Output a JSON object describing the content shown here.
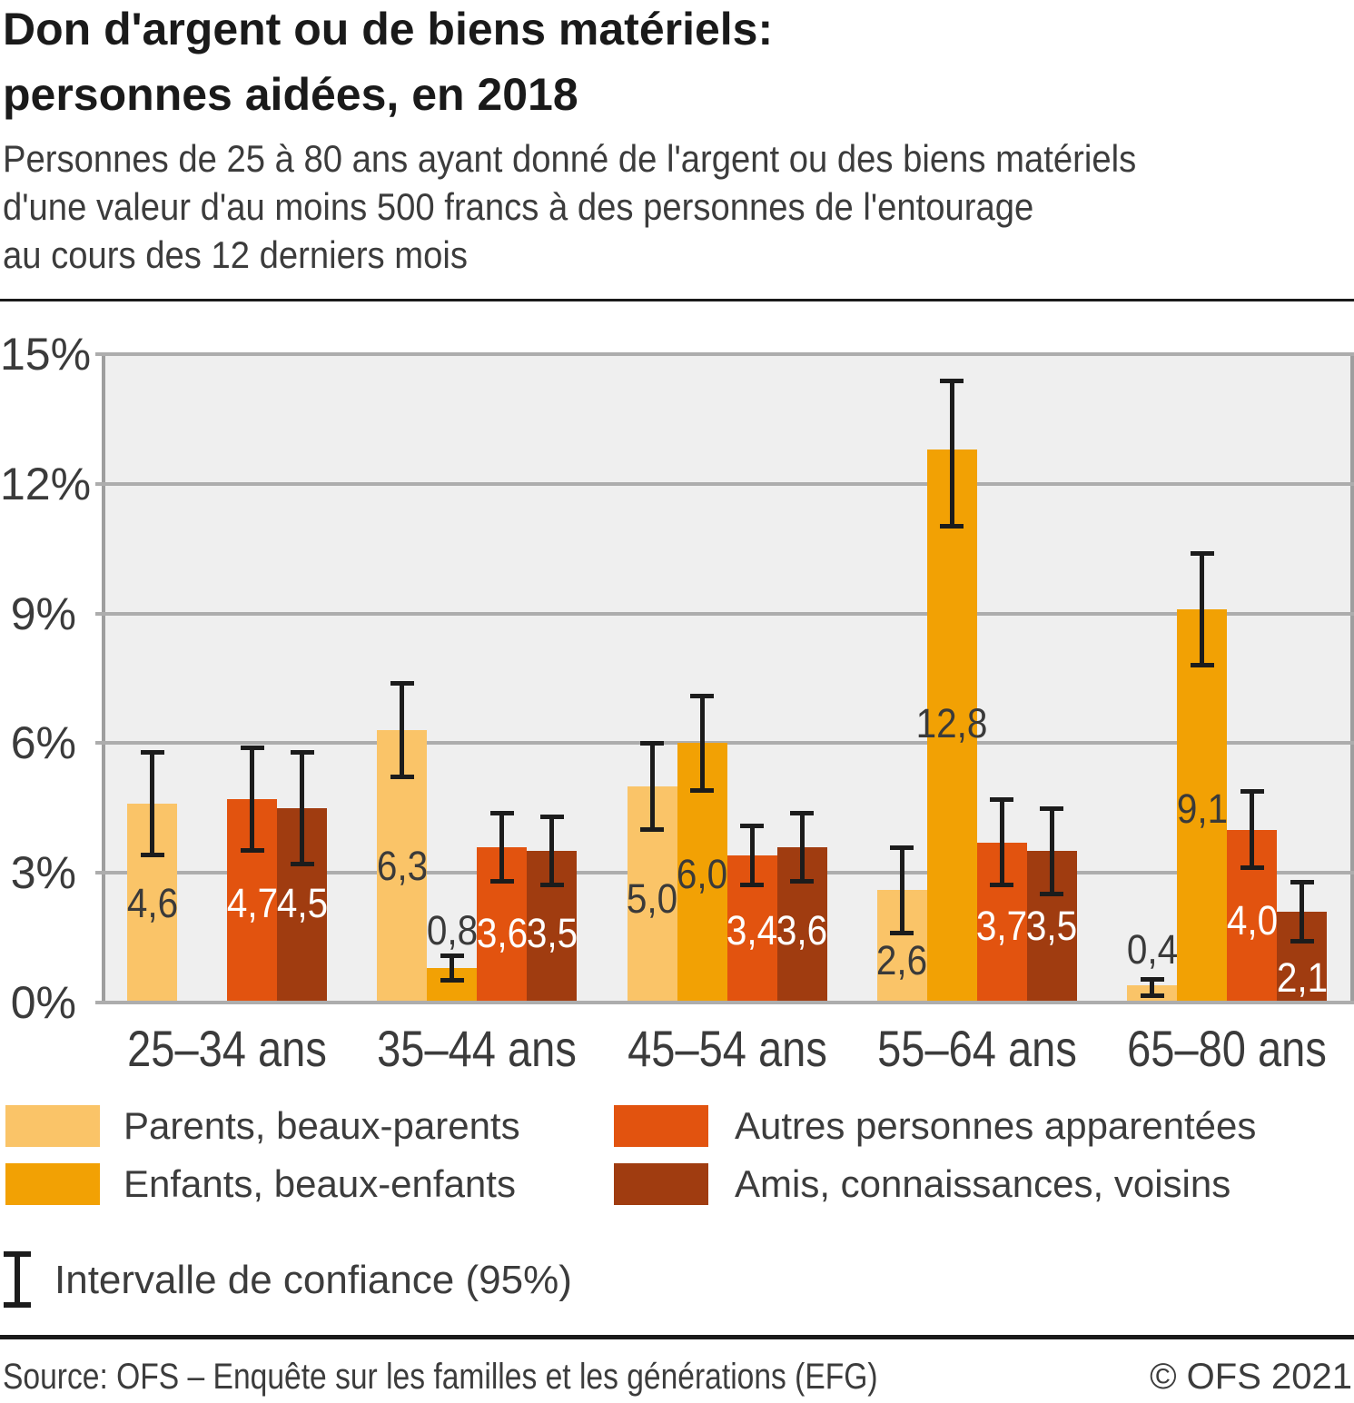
{
  "header": {
    "title_line1": "Don d'argent ou de biens matériels:",
    "title_line2": "personnes aidées, en 2018",
    "subtitle_lines": [
      "Personnes de 25 à 80 ans ayant donné de l'argent ou des biens matériels",
      "d'une valeur d'au moins 500 francs à des personnes de l'entourage",
      "au cours des 12 derniers mois"
    ]
  },
  "chart_data": {
    "type": "bar",
    "title": "Don d'argent ou de biens matériels: personnes aidées, en 2018",
    "categories": [
      "25–34 ans",
      "35–44 ans",
      "45–54 ans",
      "55–64 ans",
      "65–80 ans"
    ],
    "ylim": [
      0,
      15
    ],
    "yticks": [
      {
        "value": 0,
        "label": "0%"
      },
      {
        "value": 3,
        "label": "3%"
      },
      {
        "value": 6,
        "label": "6%"
      },
      {
        "value": 9,
        "label": "9%"
      },
      {
        "value": 12,
        "label": "12%"
      },
      {
        "value": 15,
        "label": "15%"
      }
    ],
    "grid": true,
    "legend_position": "bottom",
    "colors": {
      "plot_background": "#efefef",
      "gridline": "#adadad",
      "axis_line": "#9e9e9e",
      "error_bar": "#1c1c1c"
    },
    "series": [
      {
        "name": "Parents, beaux-parents",
        "color": "#FAC468",
        "label_color": "#3a3a3a",
        "values": [
          4.6,
          6.3,
          5.0,
          2.6,
          0.4
        ],
        "labels": [
          "4,6",
          "6,3",
          "5,0",
          "2,6",
          "0,4"
        ],
        "ci": [
          [
            3.4,
            5.8
          ],
          [
            5.2,
            7.4
          ],
          [
            4.0,
            6.0
          ],
          [
            1.6,
            3.6
          ],
          [
            0.15,
            0.55
          ]
        ],
        "label_y": [
          2.3,
          3.15,
          2.4,
          0.97,
          1.22
        ]
      },
      {
        "name": "Enfants, beaux-enfants",
        "color": "#F2A104",
        "label_color": "#3a3a3a",
        "values": [
          null,
          0.8,
          6.0,
          12.8,
          9.1
        ],
        "labels": [
          null,
          "0,8",
          "6,0",
          "12,8",
          "9,1"
        ],
        "ci": [
          null,
          [
            0.5,
            1.1
          ],
          [
            4.9,
            7.1
          ],
          [
            11.0,
            14.4
          ],
          [
            7.8,
            10.4
          ]
        ],
        "label_y": [
          null,
          1.66,
          2.96,
          6.45,
          4.47
        ]
      },
      {
        "name": "Autres personnes apparentées",
        "color": "#E2530F",
        "label_color": "#ffffff",
        "values": [
          4.7,
          3.6,
          3.4,
          3.7,
          4.0
        ],
        "labels": [
          "4,7",
          "3,6",
          "3,4",
          "3,7",
          "4,0"
        ],
        "ci": [
          [
            3.5,
            5.9
          ],
          [
            2.8,
            4.4
          ],
          [
            2.7,
            4.1
          ],
          [
            2.7,
            4.7
          ],
          [
            3.1,
            4.9
          ]
        ],
        "label_y": [
          2.3,
          1.6,
          1.66,
          1.76,
          1.89
        ]
      },
      {
        "name": "Amis, connaissances, voisins",
        "color": "#A03C10",
        "label_color": "#ffffff",
        "values": [
          4.5,
          3.5,
          3.6,
          3.5,
          2.1
        ],
        "labels": [
          "4,5",
          "3,5",
          "3,6",
          "3,5",
          "2,1"
        ],
        "ci": [
          [
            3.2,
            5.8
          ],
          [
            2.7,
            4.3
          ],
          [
            2.8,
            4.4
          ],
          [
            2.5,
            4.5
          ],
          [
            1.4,
            2.8
          ]
        ],
        "label_y": [
          2.3,
          1.6,
          1.66,
          1.76,
          0.57
        ]
      }
    ],
    "error_bars": {
      "label": "Intervalle de confiance (95%)",
      "level": "95%"
    }
  },
  "ci_legend": {
    "label": "Intervalle de confiance (95%)"
  },
  "footer": {
    "source": "Source: OFS – Enquête sur les familles et les générations (EFG)",
    "copyright": "© OFS 2021"
  }
}
